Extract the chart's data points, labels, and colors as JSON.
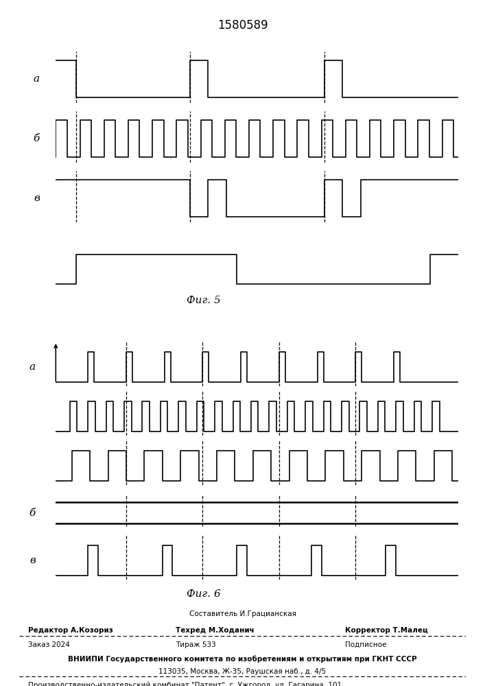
{
  "title": "1580589",
  "fig5_label": "Фиг. 5",
  "fig6_label": "Фиг. 6",
  "footer_line0": "Составитель И.Грацианская",
  "footer_line1": "Редактор А.Козориз",
  "footer_line1b": "Техред М.Ходанич",
  "footer_line1c": "Корректор Т.Малец",
  "footer_line2a": "Заказ 2024",
  "footer_line2b": "Тираж 533",
  "footer_line2c": "Подписное",
  "footer_line3": "ВНИИПИ Государственного комитета по изобретениям и открытиям при ГКНТ СССР",
  "footer_line4": "113035, Москва, Ж-35, Раушская наб., д. 4/5",
  "footer_line5": "Производственно-издательский комбинат \"Патент\", г. Ужгород, ул. Гагарина, 101",
  "bg": "#ffffff",
  "lc": "#000000"
}
